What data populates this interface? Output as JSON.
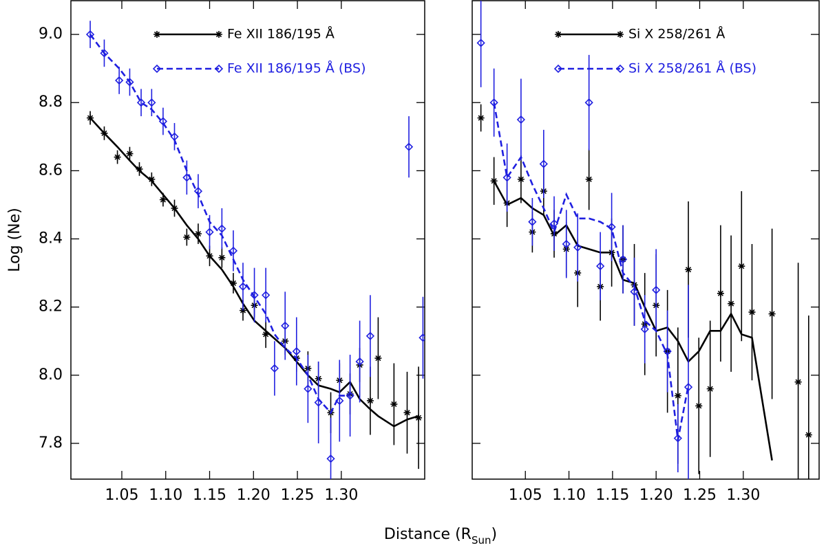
{
  "chart_data": [
    {
      "type": "scatter",
      "y_label": "Log (Ne)",
      "x_label": "Distance (R",
      "x_label_sub": "Sun",
      "x_label_end": ")",
      "xlim": [
        0.992,
        1.395
      ],
      "ylim": [
        7.695,
        9.099
      ],
      "xticks": [
        1.05,
        {
          "value": 1.1,
          "label": "1.10"
        },
        1.15,
        {
          "value": 1.2,
          "label": "1.20"
        },
        1.25,
        {
          "value": 1.3,
          "label": "1.30"
        }
      ],
      "yticks": [
        7.8,
        {
          "value": 8,
          "label": "8.0"
        },
        8.2,
        8.4,
        8.6,
        8.8,
        {
          "value": 9,
          "label": "9.0"
        }
      ],
      "series": [
        {
          "name": "Fe XII 186/195 Å",
          "color": "#000000",
          "marker": "asterisk",
          "dash": false,
          "x": [
            1.014,
            1.03,
            1.045,
            1.059,
            1.07,
            1.084,
            1.097,
            1.11,
            1.124,
            1.137,
            1.15,
            1.164,
            1.177,
            1.188,
            1.201,
            1.214,
            1.236,
            1.249,
            1.262,
            1.274,
            1.288,
            1.298,
            1.31,
            1.321,
            1.333,
            1.342,
            1.36,
            1.375,
            1.388
          ],
          "values": [
            8.755,
            8.71,
            8.64,
            8.65,
            8.605,
            8.575,
            8.515,
            8.49,
            8.405,
            8.415,
            8.35,
            8.345,
            8.27,
            8.19,
            8.205,
            8.12,
            8.1,
            8.05,
            8.02,
            7.99,
            7.89,
            7.985,
            7.945,
            8.03,
            7.925,
            8.05,
            7.915,
            7.89,
            7.875
          ],
          "errors": [
            0.02,
            0.02,
            0.02,
            0.02,
            0.02,
            0.02,
            0.02,
            0.025,
            0.025,
            0.03,
            0.03,
            0.03,
            0.03,
            0.03,
            0.035,
            0.04,
            0.04,
            0.04,
            0.05,
            0.05,
            0.06,
            0.05,
            0.06,
            0.05,
            0.1,
            0.12,
            0.12,
            0.12,
            0.15
          ],
          "line": [
            8.755,
            8.71,
            8.67,
            8.63,
            8.6,
            8.57,
            8.53,
            8.49,
            8.44,
            8.4,
            8.35,
            8.31,
            8.26,
            8.21,
            8.16,
            8.13,
            8.08,
            8.04,
            8.0,
            7.97,
            7.96,
            7.95,
            7.98,
            7.93,
            7.9,
            7.88,
            7.85,
            7.87,
            7.88
          ]
        },
        {
          "name": "Fe XII 186/195 Å (BS)",
          "color": "#1f1fe0",
          "marker": "diamond",
          "dash": true,
          "x": [
            1.014,
            1.03,
            1.047,
            1.059,
            1.072,
            1.084,
            1.097,
            1.11,
            1.124,
            1.137,
            1.15,
            1.164,
            1.177,
            1.188,
            1.201,
            1.214,
            1.224,
            1.236,
            1.249,
            1.262,
            1.274,
            1.288,
            1.298,
            1.31,
            1.321,
            1.333,
            1.377,
            1.393
          ],
          "values": [
            9.0,
            8.945,
            8.865,
            8.86,
            8.8,
            8.8,
            8.745,
            8.7,
            8.58,
            8.54,
            8.42,
            8.43,
            8.365,
            8.26,
            8.235,
            8.235,
            8.02,
            8.145,
            8.07,
            7.96,
            7.92,
            7.755,
            7.925,
            7.94,
            8.04,
            8.115,
            8.67,
            8.11
          ],
          "errors": [
            0.04,
            0.04,
            0.04,
            0.04,
            0.04,
            0.04,
            0.04,
            0.04,
            0.05,
            0.05,
            0.05,
            0.06,
            0.06,
            0.07,
            0.08,
            0.08,
            0.08,
            0.1,
            0.1,
            0.1,
            0.12,
            0.12,
            0.12,
            0.12,
            0.12,
            0.12,
            0.09,
            0.12
          ],
          "line": [
            9.0,
            8.945,
            8.9,
            8.86,
            8.8,
            8.78,
            8.74,
            8.69,
            8.6,
            8.53,
            8.45,
            8.41,
            8.34,
            8.28,
            8.23,
            8.18,
            8.12,
            8.08,
            8.05,
            8.0,
            7.93,
            7.89,
            7.94,
            7.94,
            null,
            null,
            null,
            null
          ]
        }
      ]
    },
    {
      "type": "scatter",
      "xlim": [
        0.989,
        1.387
      ],
      "ylim": [
        7.695,
        9.099
      ],
      "xticks": [
        1.05,
        {
          "value": 1.1,
          "label": "1.10"
        },
        1.15,
        {
          "value": 1.2,
          "label": "1.20"
        },
        1.25,
        {
          "value": 1.3,
          "label": "1.30"
        }
      ],
      "yticks": [
        7.8,
        {
          "value": 8,
          "label": "8.0"
        },
        8.2,
        8.4,
        8.6,
        8.8,
        {
          "value": 9,
          "label": "9.0"
        }
      ],
      "series": [
        {
          "name": "Si X 258/261 Å",
          "color": "#000000",
          "marker": "asterisk",
          "dash": false,
          "x": [
            0.999,
            1.014,
            1.029,
            1.045,
            1.058,
            1.071,
            1.083,
            1.097,
            1.11,
            1.123,
            1.136,
            1.149,
            1.162,
            1.175,
            1.187,
            1.2,
            1.213,
            1.225,
            1.237,
            1.249,
            1.262,
            1.274,
            1.286,
            1.298,
            1.31,
            1.333,
            1.363,
            1.375
          ],
          "values": [
            8.755,
            8.57,
            8.505,
            8.575,
            8.42,
            8.54,
            8.415,
            8.37,
            8.3,
            8.575,
            8.26,
            8.36,
            8.34,
            8.265,
            8.15,
            8.205,
            8.07,
            7.94,
            8.31,
            7.91,
            7.96,
            8.24,
            8.21,
            8.32,
            8.185,
            8.18,
            7.98,
            7.825
          ],
          "errors": [
            0.04,
            0.07,
            0.07,
            0.07,
            0.06,
            0.07,
            0.07,
            0.08,
            0.1,
            0.09,
            0.1,
            0.1,
            0.1,
            0.12,
            0.15,
            0.15,
            0.18,
            0.2,
            0.2,
            0.2,
            0.2,
            0.2,
            0.2,
            0.22,
            0.2,
            0.25,
            0.35,
            0.35
          ],
          "line": [
            null,
            8.57,
            8.5,
            8.52,
            8.49,
            8.47,
            8.41,
            8.44,
            8.38,
            8.37,
            8.36,
            8.36,
            8.28,
            8.27,
            8.2,
            8.13,
            8.14,
            8.1,
            8.04,
            8.07,
            8.13,
            8.13,
            8.18,
            8.12,
            8.11,
            7.75,
            null,
            null
          ]
        },
        {
          "name": "Si X 258/261 Å (BS)",
          "color": "#1f1fe0",
          "marker": "diamond",
          "dash": true,
          "x": [
            0.999,
            1.014,
            1.029,
            1.045,
            1.058,
            1.071,
            1.083,
            1.097,
            1.11,
            1.123,
            1.136,
            1.149,
            1.162,
            1.175,
            1.187,
            1.2,
            1.213,
            1.225,
            1.237
          ],
          "values": [
            8.975,
            8.8,
            8.58,
            8.75,
            8.45,
            8.62,
            8.445,
            8.385,
            8.375,
            8.8,
            8.32,
            8.435,
            8.34,
            8.245,
            8.135,
            8.25,
            8.07,
            7.815,
            7.965
          ],
          "errors": [
            0.13,
            0.1,
            0.1,
            0.12,
            0.07,
            0.1,
            0.08,
            0.1,
            0.1,
            0.14,
            0.1,
            0.1,
            0.1,
            0.1,
            0.1,
            0.12,
            0.12,
            0.1,
            0.3
          ],
          "line": [
            null,
            8.8,
            8.58,
            8.64,
            8.56,
            8.49,
            8.42,
            8.53,
            8.46,
            8.46,
            8.45,
            8.43,
            8.3,
            8.26,
            8.16,
            8.13,
            8.06,
            7.81,
            7.97
          ]
        }
      ]
    }
  ]
}
